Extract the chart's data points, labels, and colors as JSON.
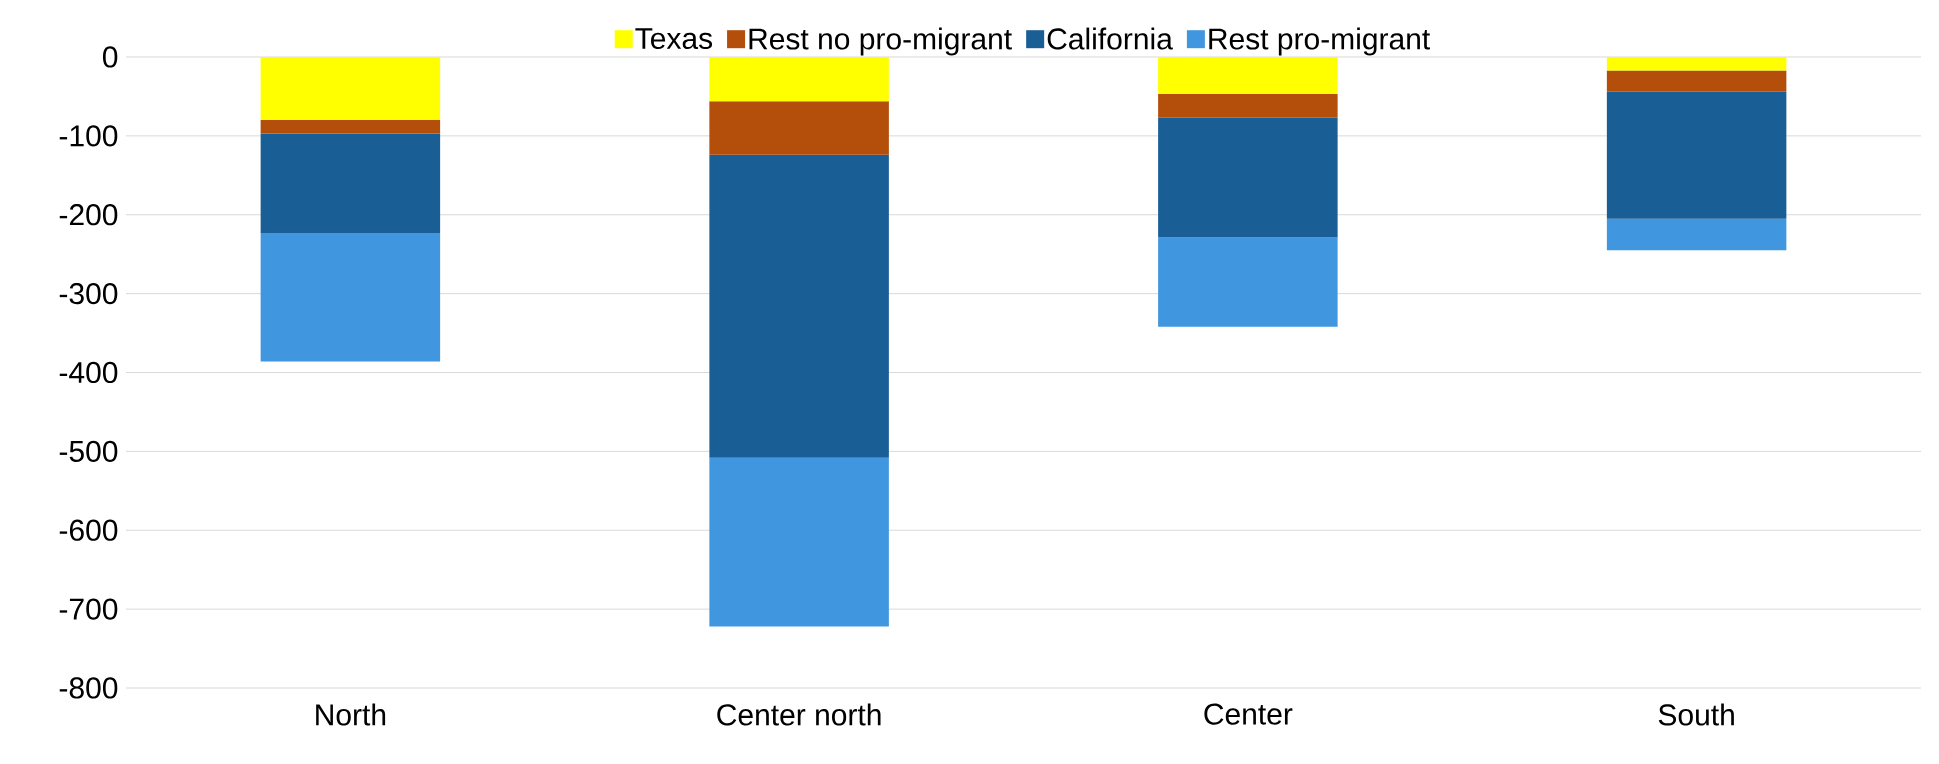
{
  "chart_data": {
    "type": "bar",
    "stacked": true,
    "categories": [
      "North",
      "Center north",
      "Center",
      "South"
    ],
    "series": [
      {
        "name": "Texas",
        "color": "#ffff00",
        "values": [
          -80,
          -56,
          -47,
          -17
        ]
      },
      {
        "name": "Rest no pro-migrant",
        "color": "#b34e0b",
        "values": [
          -17,
          -68,
          -30,
          -27
        ]
      },
      {
        "name": "California",
        "color": "#1a5e96",
        "values": [
          -126,
          -384,
          -152,
          -161
        ]
      },
      {
        "name": "Rest pro-migrant",
        "color": "#4196e0",
        "values": [
          -163,
          -214,
          -113,
          -40
        ]
      }
    ],
    "ylim": [
      -800,
      0
    ],
    "yticks": [
      0,
      -100,
      -200,
      -300,
      -400,
      -500,
      -600,
      -700,
      -800
    ],
    "grid": "y",
    "legend": "top"
  }
}
